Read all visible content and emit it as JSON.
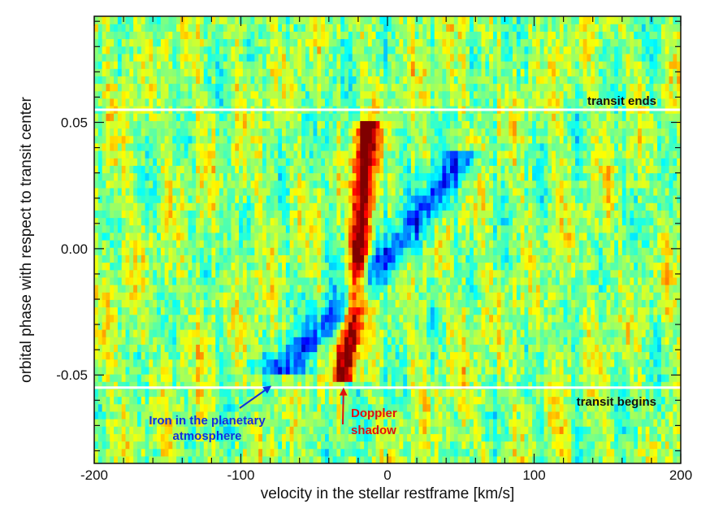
{
  "chart_data": {
    "type": "heatmap",
    "xlabel": "velocity in the stellar restframe [km/s]",
    "ylabel": "orbital phase with respect to transit center",
    "xlim": [
      -200,
      200
    ],
    "ylim": [
      -0.085,
      0.092
    ],
    "x_ticks": [
      -200,
      -100,
      0,
      100,
      200
    ],
    "x_tick_labels": [
      "-200",
      "-100",
      "0",
      "100",
      "200"
    ],
    "y_ticks": [
      -0.05,
      0.0,
      0.05
    ],
    "y_tick_labels": [
      "-0.05",
      "0.00",
      "0.05"
    ],
    "colormap": "jet",
    "grid": false,
    "features": [
      {
        "name": "Doppler shadow",
        "shape": "ridge",
        "sign": "positive",
        "path": [
          {
            "x": -30,
            "y": -0.053
          },
          {
            "x": -24,
            "y": -0.025
          },
          {
            "x": -19,
            "y": 0.0
          },
          {
            "x": -16,
            "y": 0.025
          },
          {
            "x": -14,
            "y": 0.05
          }
        ]
      },
      {
        "name": "Iron in the planetary atmosphere",
        "shape": "band",
        "sign": "negative",
        "path": [
          {
            "x": -70,
            "y": -0.045
          },
          {
            "x": -45,
            "y": -0.033
          },
          {
            "x": -15,
            "y": -0.012
          },
          {
            "x": 5,
            "y": 0.0
          },
          {
            "x": 25,
            "y": 0.015
          },
          {
            "x": 50,
            "y": 0.035
          }
        ]
      }
    ],
    "reference_lines": [
      {
        "y": 0.055,
        "label": "transit ends",
        "color": "#ffffff"
      },
      {
        "y": -0.055,
        "label": "transit begins",
        "color": "#ffffff"
      }
    ],
    "annotations": [
      {
        "text_lines": [
          "Iron in the planetary",
          "atmosphere"
        ],
        "color": "#1030e0",
        "arrow_to": {
          "x": -80,
          "y": -0.053
        }
      },
      {
        "text_lines": [
          "Doppler",
          "shadow"
        ],
        "color": "#e01010",
        "arrow_to": {
          "x": -30,
          "y": -0.053
        }
      }
    ]
  }
}
